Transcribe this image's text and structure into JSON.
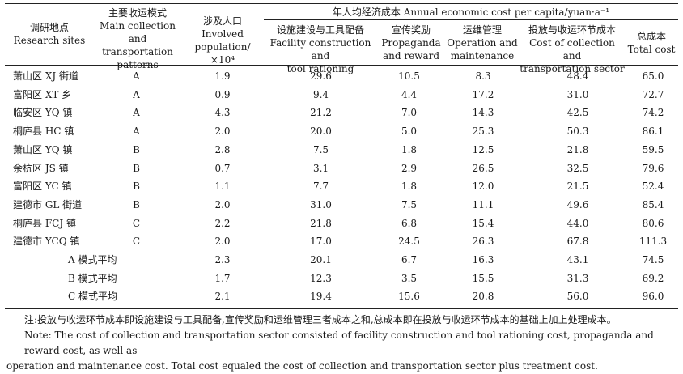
{
  "header": {
    "site_cn": "调研地点",
    "site_en": "Research sites",
    "mode_cn": "主要收运模式",
    "mode_en1": "Main collection",
    "mode_en2": "and transportation",
    "mode_en3": "patterns",
    "pop_cn": "涉及人口",
    "pop_en1": "Involved",
    "pop_en2": "population/×10⁴",
    "group": "年人均经济成本 Annual economic cost per capita/yuan·a⁻¹",
    "fac_cn": "设施建设与工具配备",
    "fac_en1": "Facility construction and",
    "fac_en2": "tool rationing",
    "pro_cn": "宣传奖励",
    "pro_en1": "Propaganda",
    "pro_en2": "and reward",
    "ope_cn": "运维管理",
    "ope_en1": "Operation and",
    "ope_en2": "maintenance",
    "col_cn": "投放与收运环节成本",
    "col_en1": "Cost of collection and",
    "col_en2": "transportation sector",
    "tot_cn": "总成本",
    "tot_en": "Total cost"
  },
  "rows": [
    {
      "site": "萧山区 XJ 街道",
      "mode": "A",
      "pop": "1.9",
      "fac": "29.6",
      "pro": "10.5",
      "ope": "8.3",
      "col": "48.4",
      "tot": "65.0"
    },
    {
      "site": "富阳区 XT 乡",
      "mode": "A",
      "pop": "0.9",
      "fac": "9.4",
      "pro": "4.4",
      "ope": "17.2",
      "col": "31.0",
      "tot": "72.7"
    },
    {
      "site": "临安区 YQ 镇",
      "mode": "A",
      "pop": "4.3",
      "fac": "21.2",
      "pro": "7.0",
      "ope": "14.3",
      "col": "42.5",
      "tot": "74.2"
    },
    {
      "site": "桐庐县 HC 镇",
      "mode": "A",
      "pop": "2.0",
      "fac": "20.0",
      "pro": "5.0",
      "ope": "25.3",
      "col": "50.3",
      "tot": "86.1"
    },
    {
      "site": "萧山区 YQ 镇",
      "mode": "B",
      "pop": "2.8",
      "fac": "7.5",
      "pro": "1.8",
      "ope": "12.5",
      "col": "21.8",
      "tot": "59.5"
    },
    {
      "site": "余杭区 JS 镇",
      "mode": "B",
      "pop": "0.7",
      "fac": "3.1",
      "pro": "2.9",
      "ope": "26.5",
      "col": "32.5",
      "tot": "79.6"
    },
    {
      "site": "富阳区 YC 镇",
      "mode": "B",
      "pop": "1.1",
      "fac": "7.7",
      "pro": "1.8",
      "ope": "12.0",
      "col": "21.5",
      "tot": "52.4"
    },
    {
      "site": "建德市 GL 街道",
      "mode": "B",
      "pop": "2.0",
      "fac": "31.0",
      "pro": "7.5",
      "ope": "11.1",
      "col": "49.6",
      "tot": "85.4"
    },
    {
      "site": "桐庐县 FCJ 镇",
      "mode": "C",
      "pop": "2.2",
      "fac": "21.8",
      "pro": "6.8",
      "ope": "15.4",
      "col": "44.0",
      "tot": "80.6"
    },
    {
      "site": "建德市 YCQ 镇",
      "mode": "C",
      "pop": "2.0",
      "fac": "17.0",
      "pro": "24.5",
      "ope": "26.3",
      "col": "67.8",
      "tot": "111.3"
    }
  ],
  "averages": [
    {
      "site": "A 模式平均",
      "pop": "2.3",
      "fac": "20.1",
      "pro": "6.7",
      "ope": "16.3",
      "col": "43.1",
      "tot": "74.5"
    },
    {
      "site": "B 模式平均",
      "pop": "1.7",
      "fac": "12.3",
      "pro": "3.5",
      "ope": "15.5",
      "col": "31.3",
      "tot": "69.2"
    },
    {
      "site": "C 模式平均",
      "pop": "2.1",
      "fac": "19.4",
      "pro": "15.6",
      "ope": "20.8",
      "col": "56.0",
      "tot": "96.0"
    }
  ],
  "notes": {
    "cn": "注:投放与收运环节成本即设施建设与工具配备,宣传奖励和运维管理三者成本之和,总成本即在投放与收运环节成本的基础上加上处理成本。",
    "en1": "Note: The cost of collection and transportation sector consisted of facility construction and tool rationing cost, propaganda and reward cost, as well as",
    "en2": "operation and maintenance cost. Total cost equaled the cost of collection and transportation sector plus treatment cost."
  }
}
